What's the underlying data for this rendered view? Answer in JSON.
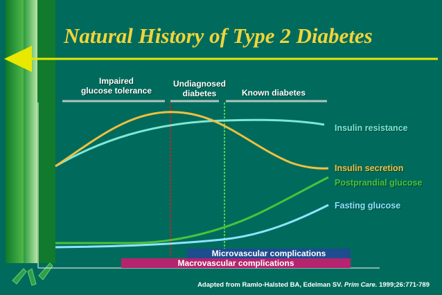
{
  "title": "Natural History of Type 2 Diabetes",
  "phases": {
    "impaired": [
      "Impaired",
      "glucose tolerance"
    ],
    "undiagnosed": [
      "Undiagnosed",
      "diabetes"
    ],
    "known": "Known diabetes"
  },
  "curves": {
    "insulin_resistance": {
      "label": "Insulin resistance",
      "color": "#7fe8d6"
    },
    "insulin_secretion": {
      "label": "Insulin secretion",
      "color": "#f2c040"
    },
    "postprandial_glucose": {
      "label": "Postprandial glucose",
      "color": "#4cc23a"
    },
    "fasting_glucose": {
      "label": "Fasting glucose",
      "color": "#8fe3ff"
    }
  },
  "bars": {
    "microvascular": {
      "label": "Microvascular complications",
      "color": "#1d4c8f"
    },
    "macrovascular": {
      "label": "Macrovascular complications",
      "color": "#b5246e"
    }
  },
  "citation": {
    "prefix": "Adapted from Ramlo-Halsted BA, Edelman SV. ",
    "journal": "Prim Care.",
    "suffix": " 1999;26:771-789"
  },
  "colors": {
    "background": "#006b5c",
    "title": "#f2d43a",
    "arrow": "#e8e800"
  }
}
